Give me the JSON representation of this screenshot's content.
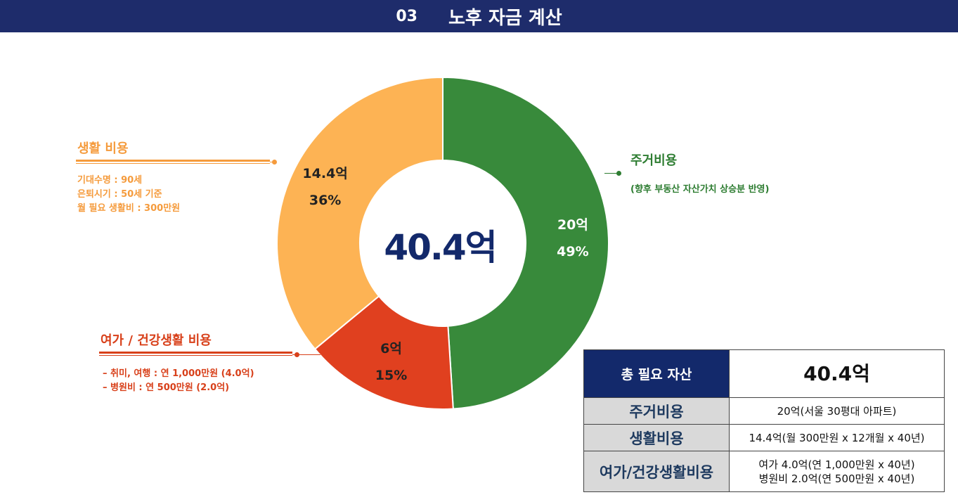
{
  "header": {
    "number": "03",
    "title": "노후 자금 계산"
  },
  "chart_data": {
    "type": "pie",
    "center_label": "40.4억",
    "slices": [
      {
        "name": "주거비용",
        "amount_label": "20억",
        "percent": 49,
        "percent_label": "49%",
        "color": "#388a3b"
      },
      {
        "name": "여가 / 건강생활 비용",
        "amount_label": "6억",
        "percent": 15,
        "percent_label": "15%",
        "color": "#e0401f"
      },
      {
        "name": "생활 비용",
        "amount_label": "14.4억",
        "percent": 36,
        "percent_label": "36%",
        "color": "#fdb354"
      }
    ]
  },
  "callouts": {
    "living": {
      "title": "생활 비용",
      "lines": [
        "기대수명 : 90세",
        "은퇴시기 : 50세 기준",
        "월 필요 생활비 : 300만원"
      ],
      "color": "#f59b3c"
    },
    "housing": {
      "title": "주거비용",
      "lines": [
        "(향후 부동산 자산가치 상승분 반영)"
      ],
      "color": "#2e7d32"
    },
    "leisure": {
      "title": "여가 / 건강생활 비용",
      "lines": [
        "– 취미, 여행 : 연 1,000만원 (4.0억)",
        "– 병원비 : 연 500만원 (2.0억)"
      ],
      "color": "#d8401a"
    }
  },
  "summary_table": {
    "total_label": "총 필요 자산",
    "total_value": "40.4억",
    "rows": [
      {
        "label": "주거비용",
        "lines": [
          "20억(서울 30평대 아파트)"
        ]
      },
      {
        "label": "생활비용",
        "lines": [
          "14.4억(월 300만원 x 12개월 x  40년)"
        ]
      },
      {
        "label": "여가/건강생활비용",
        "lines": [
          "여가 4.0억(연 1,000만원 x 40년)",
          "병원비 2.0억(연 500만원 x 40년)"
        ]
      }
    ]
  },
  "colors": {
    "header_bg": "#1e2c6b",
    "center_text": "#13296b",
    "table_head_bg": "#13296b",
    "table_label_bg": "#d9d9d9"
  }
}
